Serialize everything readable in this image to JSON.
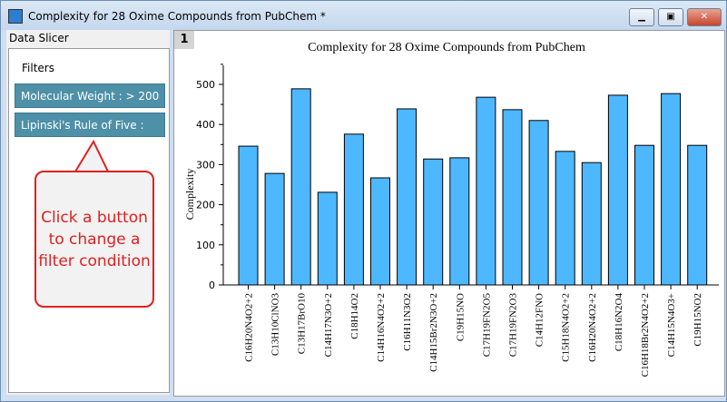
{
  "window": {
    "title": "Complexity for 28 Oxime Compounds from PubChem *",
    "minimize": "▁",
    "maximize": "▣",
    "close": "✕"
  },
  "slicer": {
    "header": "Data Slicer",
    "filters_label": "Filters",
    "buttons": [
      "Molecular Weight : > 200",
      "Lipinski's Rule of Five : Yes"
    ],
    "callout": "Click a button to change a filter condition"
  },
  "graph": {
    "layer": "1"
  },
  "chart_data": {
    "type": "bar",
    "title": "Complexity for 28 Oxime Compounds from PubChem",
    "xlabel": "",
    "ylabel": "Complexity",
    "ylim": [
      0,
      550
    ],
    "yticks": [
      0,
      100,
      200,
      300,
      400,
      500
    ],
    "bar_color": "#4db8ff",
    "categories": [
      "C16H20N4O2+2",
      "C13H10ClNO3",
      "C13H17BrO10",
      "C14H17N3O+2",
      "C18H14O2",
      "C14H16N4O2+2",
      "C16H11N3O2",
      "C14H15Br2N3O+2",
      "C19H15NO",
      "C17H19FN2O5",
      "C17H19FN2O3",
      "C14H12FNO",
      "C15H18N4O2+2",
      "C16H20N4O2+2",
      "C18H16N2O4",
      "C16H18Br2N4O2+2",
      "C14H15N4O3+",
      "C19H15NO2"
    ],
    "values": [
      346,
      278,
      489,
      231,
      376,
      267,
      439,
      314,
      317,
      468,
      437,
      410,
      333,
      305,
      473,
      348,
      477,
      348
    ]
  }
}
